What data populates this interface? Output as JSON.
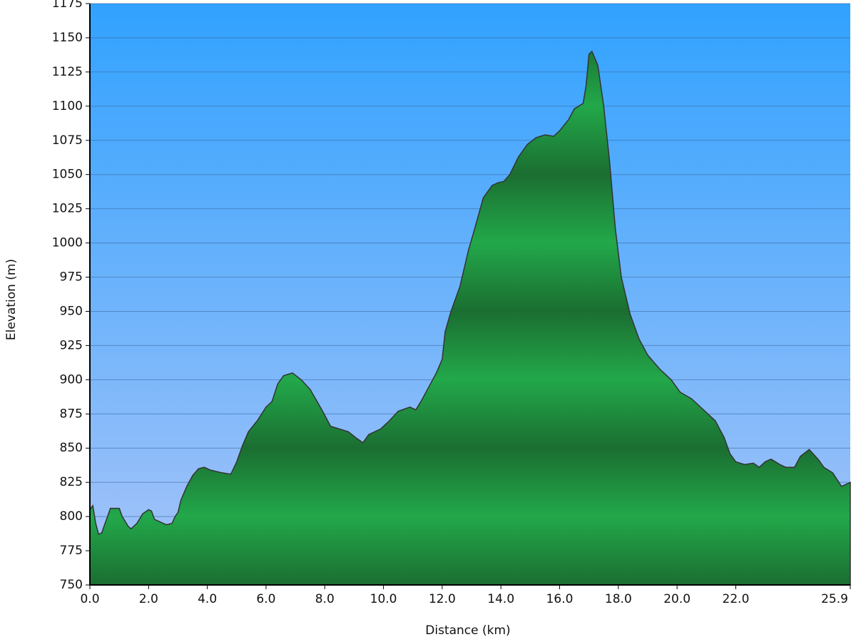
{
  "chart_data": {
    "type": "area",
    "xlabel": "Distance (km)",
    "ylabel": "Elevation (m)",
    "x": [
      0,
      0.1,
      0.2,
      0.3,
      0.4,
      0.6,
      0.7,
      1.0,
      1.1,
      1.3,
      1.4,
      1.6,
      1.8,
      2.0,
      2.1,
      2.2,
      2.4,
      2.6,
      2.8,
      2.9,
      3.0,
      3.1,
      3.3,
      3.5,
      3.7,
      3.9,
      4.1,
      4.5,
      4.8,
      5.0,
      5.2,
      5.4,
      5.7,
      6.0,
      6.2,
      6.4,
      6.6,
      6.9,
      7.2,
      7.5,
      7.9,
      8.2,
      8.5,
      8.8,
      9.1,
      9.3,
      9.5,
      9.9,
      10.2,
      10.5,
      10.9,
      11.1,
      11.3,
      11.5,
      11.8,
      12.0,
      12.1,
      12.3,
      12.6,
      12.9,
      13.1,
      13.4,
      13.7,
      13.9,
      14.1,
      14.3,
      14.6,
      14.9,
      15.2,
      15.5,
      15.8,
      16.0,
      16.3,
      16.5,
      16.8,
      16.9,
      17.0,
      17.1,
      17.3,
      17.5,
      17.7,
      17.9,
      18.1,
      18.4,
      18.7,
      19.0,
      19.4,
      19.8,
      20.1,
      20.5,
      20.9,
      21.3,
      21.6,
      21.8,
      22.0,
      22.3,
      22.6,
      22.8,
      23.0,
      23.2,
      23.5,
      23.7,
      24.0,
      24.2,
      24.5,
      24.8,
      25.0,
      25.3,
      25.6,
      25.9
    ],
    "values": [
      805,
      808,
      795,
      787,
      788,
      800,
      806,
      806,
      800,
      793,
      791,
      795,
      802,
      805,
      804,
      798,
      796,
      794,
      795,
      800,
      803,
      812,
      822,
      830,
      835,
      836,
      834,
      832,
      831,
      840,
      852,
      862,
      870,
      880,
      884,
      897,
      903,
      905,
      900,
      893,
      878,
      866,
      864,
      862,
      857,
      854,
      860,
      864,
      870,
      877,
      880,
      878,
      885,
      893,
      905,
      915,
      935,
      950,
      968,
      995,
      1010,
      1033,
      1042,
      1044,
      1045,
      1050,
      1063,
      1072,
      1077,
      1079,
      1078,
      1082,
      1090,
      1098,
      1102,
      1115,
      1138,
      1140,
      1130,
      1100,
      1060,
      1010,
      975,
      948,
      930,
      918,
      908,
      900,
      891,
      886,
      878,
      870,
      858,
      846,
      840,
      838,
      839,
      836,
      840,
      842,
      838,
      836,
      836,
      844,
      849,
      842,
      836,
      832,
      822,
      825
    ],
    "color": "#1f9e44",
    "xlim": [
      0,
      25.9
    ],
    "xticks": [
      {
        "value": 0,
        "label": "0.0"
      },
      {
        "value": 2,
        "label": "2.0"
      },
      {
        "value": 4,
        "label": "4.0"
      },
      {
        "value": 6,
        "label": "6.0"
      },
      {
        "value": 8,
        "label": "8.0"
      },
      {
        "value": 10,
        "label": "10.0"
      },
      {
        "value": 12,
        "label": "12.0"
      },
      {
        "value": 14,
        "label": "14.0"
      },
      {
        "value": 16,
        "label": "16.0"
      },
      {
        "value": 18,
        "label": "18.0"
      },
      {
        "value": 20,
        "label": "20.0"
      },
      {
        "value": 22,
        "label": "22.0"
      },
      25.9
    ],
    "ylim": [
      750,
      1175
    ],
    "yticks": [
      750,
      775,
      800,
      825,
      850,
      875,
      900,
      925,
      950,
      975,
      1000,
      1025,
      1050,
      1075,
      1100,
      1125,
      1150,
      1175
    ],
    "grid": true
  }
}
